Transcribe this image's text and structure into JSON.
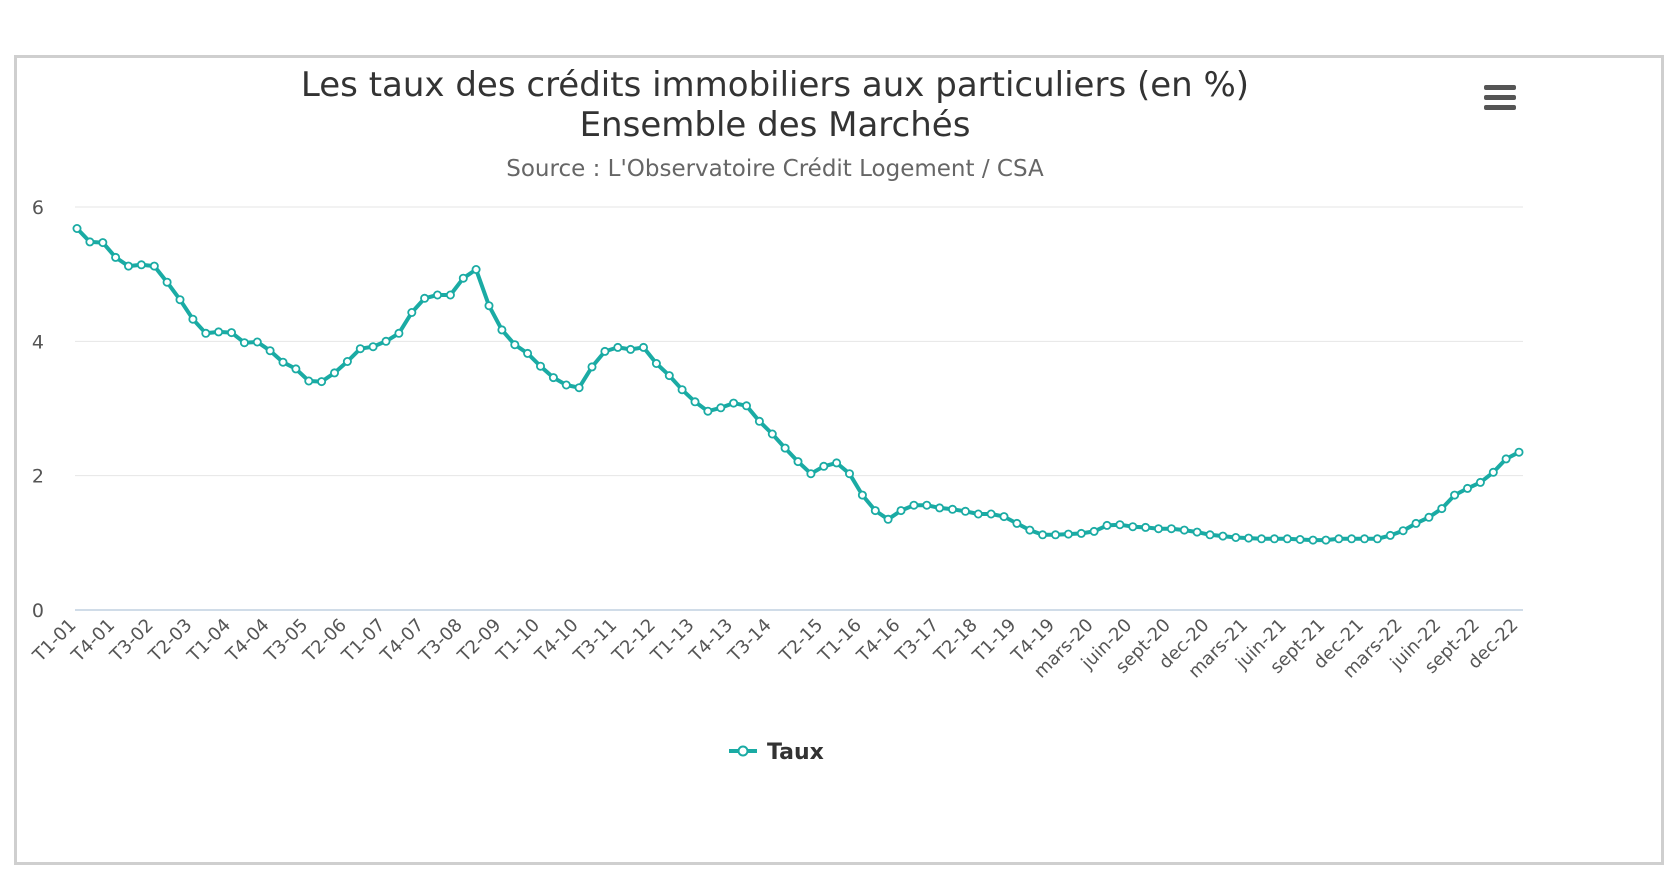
{
  "menu_icon": "hamburger-menu-icon",
  "chart_data": {
    "type": "line",
    "title": "Les taux des crédits immobiliers aux particuliers (en %)",
    "title_line2": "Ensemble des Marchés",
    "subtitle": "Source : L'Observatoire Crédit Logement / CSA",
    "xlabel": "",
    "ylabel": "",
    "ylim": [
      0,
      6
    ],
    "yticks": [
      0,
      2,
      4,
      6
    ],
    "grid": true,
    "legend_position": "bottom-center",
    "color": "#1aaba4",
    "xtick_labels": [
      "T1-01",
      "T4-01",
      "T3-02",
      "T2-03",
      "T1-04",
      "T4-04",
      "T3-05",
      "T2-06",
      "T1-07",
      "T4-07",
      "T3-08",
      "T2-09",
      "T1-10",
      "T4-10",
      "T3-11",
      "T2-12",
      "T1-13",
      "T4-13",
      "T3-14",
      "T2-15",
      "T1-16",
      "T4-16",
      "T3-17",
      "T2-18",
      "T1-19",
      "T4-19",
      "mars-20",
      "juin-20",
      "sept-20",
      "dec-20",
      "mars-21",
      "juin-21",
      "sept-21",
      "dec-21",
      "mars-22",
      "juin-22",
      "sept-22",
      "dec-22"
    ],
    "series": [
      {
        "name": "Taux",
        "values": [
          5.68,
          5.48,
          5.47,
          5.25,
          5.12,
          5.14,
          5.12,
          4.88,
          4.62,
          4.33,
          4.12,
          4.14,
          4.13,
          3.98,
          3.99,
          3.86,
          3.69,
          3.59,
          3.41,
          3.4,
          3.53,
          3.7,
          3.89,
          3.92,
          4.0,
          4.12,
          4.43,
          4.64,
          4.69,
          4.69,
          4.94,
          5.07,
          4.53,
          4.17,
          3.95,
          3.82,
          3.63,
          3.46,
          3.35,
          3.31,
          3.62,
          3.85,
          3.91,
          3.88,
          3.91,
          3.67,
          3.49,
          3.28,
          3.1,
          2.96,
          3.01,
          3.08,
          3.04,
          2.81,
          2.62,
          2.41,
          2.21,
          2.03,
          2.14,
          2.19,
          2.03,
          1.71,
          1.48,
          1.35,
          1.48,
          1.56,
          1.56,
          1.52,
          1.5,
          1.47,
          1.43,
          1.43,
          1.39,
          1.29,
          1.19,
          1.12,
          1.12,
          1.13,
          1.14,
          1.17,
          1.26,
          1.27,
          1.24,
          1.23,
          1.21,
          1.21,
          1.19,
          1.16,
          1.12,
          1.1,
          1.08,
          1.07,
          1.06,
          1.06,
          1.06,
          1.05,
          1.04,
          1.04,
          1.06,
          1.06,
          1.06,
          1.06,
          1.11,
          1.18,
          1.29,
          1.38,
          1.51,
          1.71,
          1.81,
          1.9,
          2.05,
          2.25,
          2.35
        ]
      }
    ]
  }
}
